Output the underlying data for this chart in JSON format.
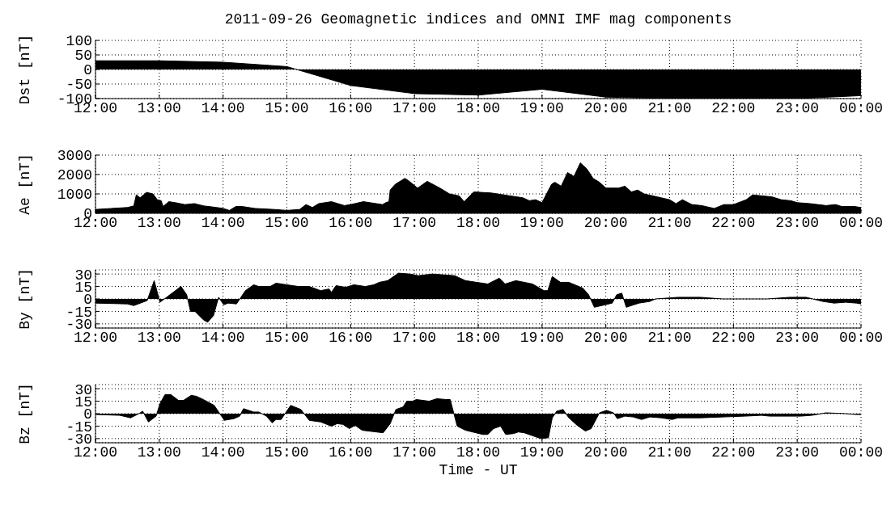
{
  "chart_data": [
    {
      "type": "area",
      "title": "2011-09-26 Geomagnetic indices and OMNI IMF mag components",
      "ylabel": "Dst [nT]",
      "color": "#000000",
      "grid": true,
      "xlim": [
        12,
        24
      ],
      "ylim": [
        -100,
        100
      ],
      "yticks": [
        -100,
        -50,
        0,
        50,
        100
      ],
      "xticks": [
        {
          "value": 12,
          "label": "12:00"
        },
        {
          "value": 13,
          "label": "13:00"
        },
        {
          "value": 14,
          "label": "14:00"
        },
        {
          "value": 15,
          "label": "15:00"
        },
        {
          "value": 16,
          "label": "16:00"
        },
        {
          "value": 17,
          "label": "17:00"
        },
        {
          "value": 18,
          "label": "18:00"
        },
        {
          "value": 19,
          "label": "19:00"
        },
        {
          "value": 20,
          "label": "20:00"
        },
        {
          "value": 21,
          "label": "21:00"
        },
        {
          "value": 22,
          "label": "22:00"
        },
        {
          "value": 23,
          "label": "23:00"
        },
        {
          "value": 24,
          "label": "00:00"
        }
      ],
      "x": [
        12,
        13,
        14,
        15,
        16,
        17,
        18,
        19,
        20,
        21,
        22,
        23,
        24
      ],
      "values": [
        30,
        30,
        25,
        10,
        -55,
        -83,
        -88,
        -68,
        -95,
        -100,
        -100,
        -100,
        -90
      ]
    },
    {
      "type": "area",
      "ylabel": "Ae [nT]",
      "color": "#000000",
      "grid": true,
      "xlim": [
        12,
        24
      ],
      "ylim": [
        0,
        3000
      ],
      "yticks": [
        0,
        1000,
        2000,
        3000
      ],
      "xticks": [
        {
          "value": 12,
          "label": "12:00"
        },
        {
          "value": 13,
          "label": "13:00"
        },
        {
          "value": 14,
          "label": "14:00"
        },
        {
          "value": 15,
          "label": "15:00"
        },
        {
          "value": 16,
          "label": "16:00"
        },
        {
          "value": 17,
          "label": "17:00"
        },
        {
          "value": 18,
          "label": "18:00"
        },
        {
          "value": 19,
          "label": "19:00"
        },
        {
          "value": 20,
          "label": "20:00"
        },
        {
          "value": 21,
          "label": "21:00"
        },
        {
          "value": 22,
          "label": "22:00"
        },
        {
          "value": 23,
          "label": "23:00"
        },
        {
          "value": 24,
          "label": "00:00"
        }
      ],
      "x": [
        12.0,
        12.25,
        12.5,
        12.6,
        12.64,
        12.7,
        12.8,
        12.9,
        12.97,
        13.03,
        13.06,
        13.15,
        13.25,
        13.4,
        13.55,
        13.7,
        13.9,
        14.0,
        14.1,
        14.2,
        14.3,
        14.5,
        14.8,
        15.0,
        15.2,
        15.3,
        15.4,
        15.5,
        15.7,
        15.8,
        15.9,
        16.0,
        16.2,
        16.4,
        16.5,
        16.55,
        16.6,
        16.62,
        16.7,
        16.85,
        16.9,
        17.05,
        17.2,
        17.4,
        17.55,
        17.7,
        17.78,
        17.93,
        18.2,
        18.5,
        18.7,
        18.8,
        18.9,
        19.0,
        19.15,
        19.2,
        19.3,
        19.4,
        19.5,
        19.6,
        19.7,
        19.8,
        19.9,
        20.0,
        20.2,
        20.3,
        20.4,
        20.5,
        20.6,
        20.8,
        21.0,
        21.1,
        21.2,
        21.35,
        21.5,
        21.7,
        21.85,
        22.0,
        22.2,
        22.3,
        22.45,
        22.6,
        22.75,
        22.9,
        23.0,
        23.2,
        23.45,
        23.6,
        23.7,
        23.9,
        24.0
      ],
      "values": [
        200,
        250,
        300,
        380,
        950,
        800,
        1080,
        1000,
        700,
        650,
        350,
        600,
        550,
        450,
        500,
        380,
        300,
        250,
        150,
        350,
        350,
        250,
        200,
        150,
        200,
        450,
        300,
        500,
        600,
        500,
        400,
        450,
        600,
        500,
        450,
        550,
        600,
        1200,
        1500,
        1800,
        1700,
        1300,
        1650,
        1300,
        1000,
        900,
        600,
        1100,
        1050,
        900,
        800,
        650,
        700,
        550,
        1500,
        1600,
        1400,
        2100,
        1900,
        2600,
        2300,
        1800,
        1600,
        1300,
        1300,
        1400,
        1100,
        1200,
        1000,
        850,
        700,
        500,
        700,
        450,
        400,
        250,
        450,
        450,
        700,
        950,
        900,
        850,
        700,
        650,
        550,
        500,
        400,
        450,
        350,
        350,
        300
      ]
    },
    {
      "type": "area",
      "ylabel": "By [nT]",
      "color": "#000000",
      "grid": true,
      "xlim": [
        12,
        24
      ],
      "ylim": [
        -35,
        35
      ],
      "yticks": [
        -30,
        -15,
        0,
        15,
        30
      ],
      "xticks": [
        {
          "value": 12,
          "label": "12:00"
        },
        {
          "value": 13,
          "label": "13:00"
        },
        {
          "value": 14,
          "label": "14:00"
        },
        {
          "value": 15,
          "label": "15:00"
        },
        {
          "value": 16,
          "label": "16:00"
        },
        {
          "value": 17,
          "label": "17:00"
        },
        {
          "value": 18,
          "label": "18:00"
        },
        {
          "value": 19,
          "label": "19:00"
        },
        {
          "value": 20,
          "label": "20:00"
        },
        {
          "value": 21,
          "label": "21:00"
        },
        {
          "value": 22,
          "label": "22:00"
        },
        {
          "value": 23,
          "label": "23:00"
        },
        {
          "value": 24,
          "label": "00:00"
        }
      ],
      "x": [
        12.0,
        12.5,
        12.6,
        12.81,
        12.92,
        13.01,
        13.08,
        13.34,
        13.43,
        13.49,
        13.56,
        13.69,
        13.76,
        13.85,
        13.93,
        14.01,
        14.08,
        14.21,
        14.35,
        14.48,
        14.56,
        14.74,
        14.83,
        15.0,
        15.18,
        15.35,
        15.53,
        15.66,
        15.7,
        15.77,
        15.92,
        16.05,
        16.23,
        16.36,
        16.45,
        16.58,
        16.75,
        16.93,
        17.06,
        17.28,
        17.63,
        17.8,
        18.15,
        18.33,
        18.42,
        18.59,
        18.85,
        19.03,
        19.09,
        19.16,
        19.29,
        19.42,
        19.64,
        19.73,
        19.82,
        19.99,
        20.1,
        20.17,
        20.25,
        20.32,
        20.52,
        20.69,
        20.78,
        21.13,
        21.48,
        21.83,
        22.18,
        22.53,
        22.88,
        23.14,
        23.4,
        23.58,
        23.76,
        23.93,
        24.0
      ],
      "values": [
        -5,
        -6,
        -8,
        -2,
        22,
        -4,
        0,
        15,
        5,
        -15,
        -15,
        -25,
        -28,
        -20,
        2,
        -7,
        -5,
        -6,
        10,
        17,
        15,
        15,
        19,
        17,
        15,
        15,
        10,
        12,
        8,
        16,
        14,
        17,
        15,
        17,
        20,
        22,
        31,
        30,
        28,
        30,
        28,
        22,
        18,
        25,
        18,
        22,
        18,
        10,
        10,
        27,
        20,
        20,
        13,
        5,
        -10,
        -7,
        -5,
        5,
        7,
        -10,
        -5,
        -3,
        0,
        2,
        2,
        0,
        0,
        0,
        2,
        2,
        -3,
        -5,
        -4,
        -5,
        -6
      ]
    },
    {
      "type": "area",
      "ylabel": "Bz [nT]",
      "xlabel": "Time - UT",
      "color": "#000000",
      "grid": true,
      "xlim": [
        12,
        24
      ],
      "ylim": [
        -35,
        35
      ],
      "yticks": [
        -30,
        -15,
        0,
        15,
        30
      ],
      "xticks": [
        {
          "value": 12,
          "label": "12:00"
        },
        {
          "value": 13,
          "label": "13:00"
        },
        {
          "value": 14,
          "label": "14:00"
        },
        {
          "value": 15,
          "label": "15:00"
        },
        {
          "value": 16,
          "label": "16:00"
        },
        {
          "value": 17,
          "label": "17:00"
        },
        {
          "value": 18,
          "label": "18:00"
        },
        {
          "value": 19,
          "label": "19:00"
        },
        {
          "value": 20,
          "label": "20:00"
        },
        {
          "value": 21,
          "label": "21:00"
        },
        {
          "value": 22,
          "label": "22:00"
        },
        {
          "value": 23,
          "label": "23:00"
        },
        {
          "value": 24,
          "label": "00:00"
        }
      ],
      "x": [
        12.0,
        12.38,
        12.55,
        12.68,
        12.74,
        12.83,
        12.95,
        13.01,
        13.09,
        13.18,
        13.3,
        13.38,
        13.5,
        13.58,
        13.69,
        13.86,
        14.02,
        14.17,
        14.26,
        14.32,
        14.48,
        14.56,
        14.68,
        14.77,
        14.83,
        14.91,
        15.06,
        15.22,
        15.35,
        15.53,
        15.7,
        15.79,
        15.88,
        15.98,
        16.07,
        16.18,
        16.4,
        16.51,
        16.62,
        16.71,
        16.82,
        16.88,
        16.97,
        17.03,
        17.23,
        17.35,
        17.5,
        17.56,
        17.67,
        17.8,
        18.07,
        18.15,
        18.24,
        18.35,
        18.43,
        18.55,
        18.63,
        18.72,
        18.98,
        19.1,
        19.16,
        19.23,
        19.33,
        19.42,
        19.55,
        19.68,
        19.77,
        19.9,
        20.01,
        20.12,
        20.18,
        20.3,
        20.43,
        20.56,
        20.69,
        20.87,
        21.04,
        21.13,
        21.48,
        21.83,
        22.18,
        22.44,
        22.57,
        23.05,
        23.23,
        23.45,
        23.76,
        23.93,
        24.0
      ],
      "values": [
        -1,
        -2,
        -5,
        0,
        3,
        -10,
        -3,
        12,
        23,
        23,
        16,
        16,
        22,
        21,
        17,
        10,
        -8,
        -6,
        -3,
        6,
        2,
        2,
        -3,
        -11,
        -7,
        -7,
        10,
        5,
        -8,
        -10,
        -15,
        -12,
        -13,
        -18,
        -14,
        -20,
        -22,
        -23,
        -12,
        5,
        8,
        15,
        15,
        17,
        15,
        18,
        17,
        17,
        -15,
        -20,
        -25,
        -25,
        -18,
        -15,
        -25,
        -24,
        -22,
        -23,
        -30,
        -29,
        -5,
        3,
        5,
        -5,
        -14,
        -21,
        -18,
        1,
        4,
        1,
        -6,
        -3,
        -4,
        -7,
        -4,
        -5,
        -7,
        -5,
        -5,
        -4,
        -3,
        -2,
        -3,
        -3,
        -2,
        1,
        0,
        -1,
        -1
      ]
    }
  ]
}
